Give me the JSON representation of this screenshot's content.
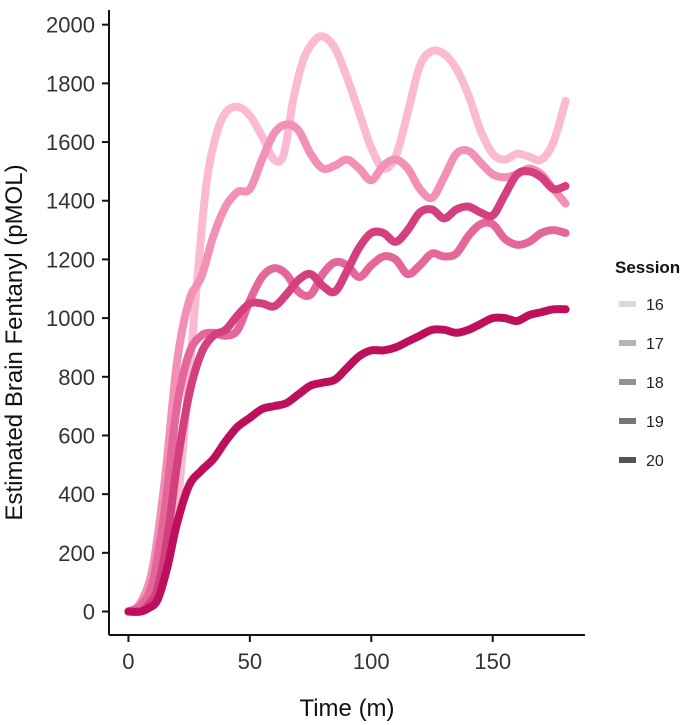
{
  "chart_data": {
    "type": "line",
    "xlabel": "Time (m)",
    "ylabel": "Estimated Brain Fentanyl (pMOL)",
    "xlim": [
      -8,
      188
    ],
    "ylim": [
      -80,
      2050
    ],
    "xticks": [
      0,
      50,
      100,
      150
    ],
    "yticks": [
      0,
      200,
      400,
      600,
      800,
      1000,
      1200,
      1400,
      1600,
      1800,
      2000
    ],
    "grid": false,
    "legend": {
      "title": "Session",
      "placement": "right",
      "entries": [
        {
          "label": "16",
          "color": "#d9d9d9"
        },
        {
          "label": "17",
          "color": "#b5b5b5"
        },
        {
          "label": "18",
          "color": "#939393"
        },
        {
          "label": "19",
          "color": "#767676"
        },
        {
          "label": "20",
          "color": "#545454"
        }
      ]
    },
    "series": [
      {
        "name": "16",
        "color": "#fbbad2",
        "x": [
          0,
          5,
          10,
          15,
          20,
          25,
          28,
          32,
          36,
          40,
          45,
          50,
          55,
          60,
          64,
          68,
          72,
          76,
          80,
          85,
          90,
          95,
          100,
          105,
          110,
          115,
          120,
          125,
          130,
          135,
          140,
          145,
          150,
          155,
          160,
          165,
          170,
          175,
          180
        ],
        "y": [
          0,
          10,
          40,
          120,
          350,
          800,
          1100,
          1450,
          1620,
          1700,
          1720,
          1690,
          1620,
          1540,
          1560,
          1750,
          1880,
          1940,
          1960,
          1920,
          1820,
          1700,
          1580,
          1510,
          1550,
          1700,
          1860,
          1910,
          1900,
          1850,
          1760,
          1640,
          1560,
          1540,
          1560,
          1550,
          1540,
          1600,
          1740
        ]
      },
      {
        "name": "17",
        "color": "#f291b5",
        "x": [
          0,
          5,
          10,
          15,
          20,
          25,
          30,
          35,
          40,
          45,
          50,
          55,
          60,
          65,
          70,
          75,
          80,
          85,
          90,
          95,
          100,
          105,
          110,
          115,
          120,
          125,
          130,
          135,
          140,
          145,
          150,
          155,
          160,
          165,
          170,
          175,
          180
        ],
        "y": [
          0,
          30,
          150,
          450,
          850,
          1060,
          1140,
          1280,
          1380,
          1430,
          1440,
          1540,
          1630,
          1660,
          1640,
          1560,
          1510,
          1520,
          1540,
          1510,
          1470,
          1520,
          1540,
          1510,
          1440,
          1410,
          1480,
          1560,
          1570,
          1530,
          1490,
          1480,
          1490,
          1510,
          1490,
          1440,
          1390
        ]
      },
      {
        "name": "18",
        "color": "#e5679a",
        "x": [
          0,
          5,
          10,
          15,
          20,
          25,
          30,
          35,
          40,
          45,
          50,
          55,
          60,
          65,
          70,
          75,
          80,
          85,
          90,
          95,
          100,
          105,
          110,
          115,
          120,
          125,
          130,
          135,
          140,
          145,
          150,
          155,
          160,
          165,
          170,
          175,
          180
        ],
        "y": [
          0,
          20,
          100,
          350,
          700,
          880,
          940,
          950,
          940,
          960,
          1060,
          1140,
          1170,
          1150,
          1090,
          1080,
          1150,
          1190,
          1180,
          1140,
          1180,
          1210,
          1200,
          1150,
          1180,
          1220,
          1210,
          1220,
          1280,
          1320,
          1320,
          1270,
          1250,
          1260,
          1290,
          1300,
          1290
        ]
      },
      {
        "name": "19",
        "color": "#d3407d",
        "x": [
          0,
          5,
          8,
          12,
          16,
          20,
          25,
          30,
          35,
          40,
          45,
          50,
          55,
          60,
          65,
          70,
          75,
          80,
          85,
          90,
          95,
          100,
          105,
          110,
          115,
          120,
          125,
          130,
          135,
          140,
          145,
          150,
          155,
          160,
          165,
          170,
          175,
          180
        ],
        "y": [
          0,
          0,
          20,
          80,
          250,
          500,
          740,
          880,
          940,
          960,
          1010,
          1050,
          1050,
          1040,
          1080,
          1130,
          1150,
          1110,
          1090,
          1160,
          1240,
          1290,
          1290,
          1260,
          1300,
          1360,
          1370,
          1340,
          1370,
          1380,
          1360,
          1350,
          1420,
          1490,
          1500,
          1480,
          1440,
          1450
        ]
      },
      {
        "name": "20",
        "color": "#bd0f5c",
        "x": [
          0,
          5,
          8,
          12,
          16,
          20,
          25,
          30,
          35,
          40,
          45,
          50,
          55,
          60,
          65,
          70,
          75,
          80,
          85,
          90,
          95,
          100,
          105,
          110,
          115,
          120,
          125,
          130,
          135,
          140,
          145,
          150,
          155,
          160,
          165,
          170,
          175,
          180
        ],
        "y": [
          0,
          0,
          10,
          40,
          150,
          300,
          430,
          480,
          520,
          580,
          630,
          660,
          690,
          700,
          710,
          740,
          770,
          780,
          790,
          830,
          870,
          890,
          890,
          900,
          920,
          940,
          960,
          960,
          950,
          960,
          980,
          1000,
          1000,
          990,
          1010,
          1020,
          1030,
          1030
        ]
      }
    ]
  }
}
